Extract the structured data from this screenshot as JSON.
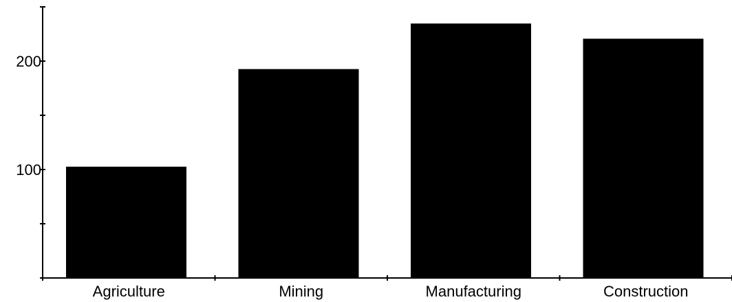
{
  "chart_data": {
    "type": "bar",
    "title": "",
    "xlabel": "",
    "ylabel": "",
    "categories": [
      "Agriculture",
      "Mining",
      "Manufacturing",
      "Construction"
    ],
    "values": [
      102,
      192,
      234,
      220
    ],
    "ylim": [
      0,
      250
    ],
    "y_ticks": [
      0,
      50,
      100,
      150,
      200,
      250
    ],
    "y_tick_labels": [
      "",
      "",
      "100",
      "",
      "200",
      ""
    ],
    "grid": false,
    "legend": "none",
    "bar_color": "#000000"
  }
}
